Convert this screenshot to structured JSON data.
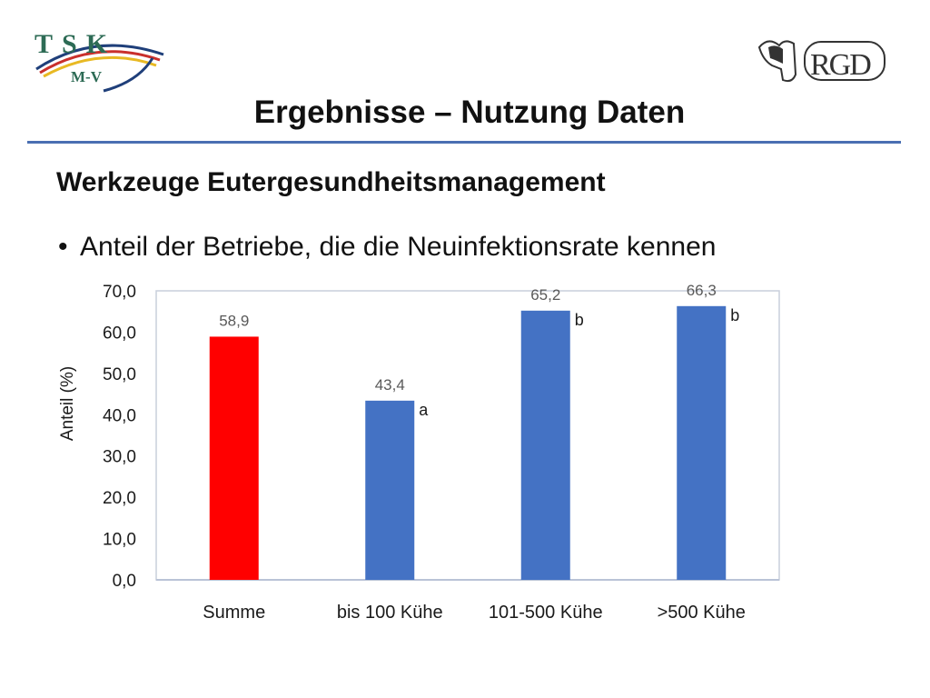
{
  "header": {
    "logo_left_text": "TSK",
    "logo_left_sub": "M-V",
    "logo_right_text": "RGD",
    "title": "Ergebnisse – Nutzung Daten"
  },
  "content": {
    "subtitle": "Werkzeuge Eutergesundheitsmanagement",
    "bullet": "Anteil der Betriebe, die die Neuinfektionsrate kennen"
  },
  "colors": {
    "accent_line": "#4a6fb2",
    "bar_highlight": "#ff0000",
    "bar_default": "#4472c4"
  },
  "chart_data": {
    "type": "bar",
    "categories": [
      "Summe",
      "bis 100 Kühe",
      "101-500 Kühe",
      ">500 Kühe"
    ],
    "values": [
      58.9,
      43.4,
      65.2,
      66.3
    ],
    "value_labels": [
      "58,9",
      "43,4",
      "65,2",
      "66,3"
    ],
    "significance_letters": [
      "",
      "a",
      "b",
      "b"
    ],
    "bar_colors": [
      "#ff0000",
      "#4472c4",
      "#4472c4",
      "#4472c4"
    ],
    "ylabel": "Anteil (%)",
    "ylim": [
      0,
      70
    ],
    "yticks": [
      0,
      10,
      20,
      30,
      40,
      50,
      60,
      70
    ],
    "ytick_labels": [
      "0,0",
      "10,0",
      "20,0",
      "30,0",
      "40,0",
      "50,0",
      "60,0",
      "70,0"
    ],
    "grid": false,
    "legend": "none"
  }
}
